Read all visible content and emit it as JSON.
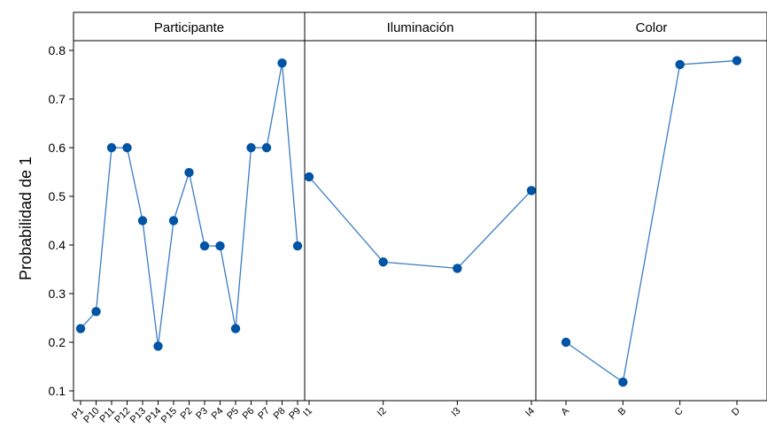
{
  "chart_data": {
    "type": "line",
    "ylabel": "Probabilidad de 1",
    "ylim": [
      0.08,
      0.82
    ],
    "yticks": [
      0.1,
      0.2,
      0.3,
      0.4,
      0.5,
      0.6,
      0.7,
      0.8
    ],
    "grid": false,
    "series_color": "#0054A6",
    "line_color": "#3A7CC4",
    "header_fill": "#ffffff",
    "panels": [
      {
        "title": "Participante",
        "categories": [
          "P1",
          "P10",
          "P11",
          "P12",
          "P13",
          "P14",
          "P15",
          "P2",
          "P3",
          "P4",
          "P5",
          "P6",
          "P7",
          "P8",
          "P9"
        ],
        "values": [
          0.228,
          0.263,
          0.6,
          0.6,
          0.45,
          0.192,
          0.45,
          0.549,
          0.398,
          0.398,
          0.228,
          0.6,
          0.6,
          0.774,
          0.398
        ]
      },
      {
        "title": "Iluminación",
        "categories": [
          "I1",
          "I2",
          "I3",
          "I4"
        ],
        "values": [
          0.54,
          0.365,
          0.352,
          0.512
        ]
      },
      {
        "title": "Color",
        "categories": [
          "A",
          "B",
          "C",
          "D"
        ],
        "values": [
          0.2,
          0.118,
          0.771,
          0.779
        ]
      }
    ]
  }
}
